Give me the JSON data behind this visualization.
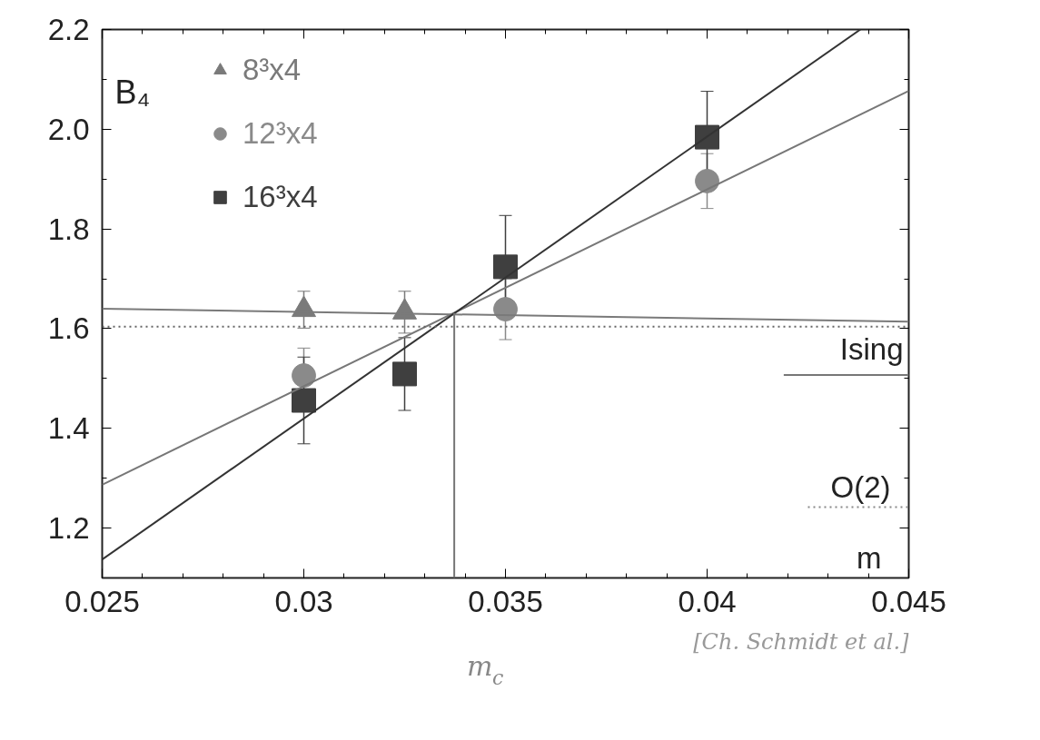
{
  "chart_data": {
    "type": "scatter",
    "xlabel": "m",
    "ylabel": "B₄",
    "xlim": [
      0.025,
      0.045
    ],
    "ylim": [
      1.1,
      2.2
    ],
    "xticks": [
      {
        "value": 0.025,
        "label": "0.025"
      },
      {
        "value": 0.03,
        "label": "0.03"
      },
      {
        "value": 0.035,
        "label": "0.035"
      },
      {
        "value": 0.04,
        "label": "0.04"
      },
      {
        "value": 0.045,
        "label": "0.045"
      }
    ],
    "yticks": [
      {
        "value": 1.2,
        "label": "1.2"
      },
      {
        "value": 1.4,
        "label": "1.4"
      },
      {
        "value": 1.6,
        "label": "1.6"
      },
      {
        "value": 1.8,
        "label": "1.8"
      },
      {
        "value": 2.0,
        "label": "2.0"
      },
      {
        "value": 2.2,
        "label": "2.2"
      }
    ],
    "grid": false,
    "legend": "top left",
    "series": [
      {
        "name": "8³x4",
        "color": "#7a7a7a",
        "marker": "triangle",
        "x": [
          0.03,
          0.0325
        ],
        "values": [
          1.638,
          1.633
        ],
        "errors": [
          0.037,
          0.042
        ]
      },
      {
        "name": "12³x4",
        "color": "#8a8a8a",
        "marker": "circle",
        "x": [
          0.03,
          0.035,
          0.04
        ],
        "values": [
          1.506,
          1.639,
          1.896
        ],
        "errors": [
          0.055,
          0.061,
          0.055
        ]
      },
      {
        "name": "16³x4",
        "color": "#3f3f3f",
        "marker": "square",
        "x": [
          0.03,
          0.0325,
          0.035,
          0.04
        ],
        "values": [
          1.456,
          1.509,
          1.724,
          1.984
        ],
        "errors": [
          0.087,
          0.073,
          0.103,
          0.092
        ]
      },
      {
        "type": "line",
        "color": "#7a7a7a",
        "x": [
          0.025,
          0.045
        ],
        "values": [
          1.64,
          1.614
        ]
      },
      {
        "type": "line",
        "color": "#777777",
        "x": [
          0.025,
          0.045
        ],
        "values": [
          1.287,
          2.077
        ]
      },
      {
        "type": "line",
        "color": "#333333",
        "x": [
          0.025,
          0.0438
        ],
        "values": [
          1.137,
          2.2
        ]
      },
      {
        "type": "line",
        "color": "#888888",
        "line_style": "dotted",
        "x": [
          0.0425,
          0.045
        ],
        "values": [
          1.242,
          1.242
        ]
      },
      {
        "type": "line",
        "color": "#777777",
        "x": [
          0.03373,
          0.03373
        ],
        "values": [
          1.631,
          1.1
        ]
      },
      {
        "type": "line",
        "color": "#777777",
        "x": [
          0.0419,
          0.045
        ],
        "values": [
          1.507,
          1.507
        ]
      }
    ],
    "ref_lines": [
      {
        "axis": "y",
        "value": 1.604,
        "label": "Ising",
        "line_style": "dotted",
        "color": "#666666"
      }
    ],
    "annotations": [
      {
        "text": "O(2)",
        "x": 0.045,
        "y": 1.242
      },
      {
        "text": "m$_{c}$",
        "x": 0.03373,
        "y": 1.1
      },
      "[Ch. Schmidt et al.]"
    ]
  }
}
